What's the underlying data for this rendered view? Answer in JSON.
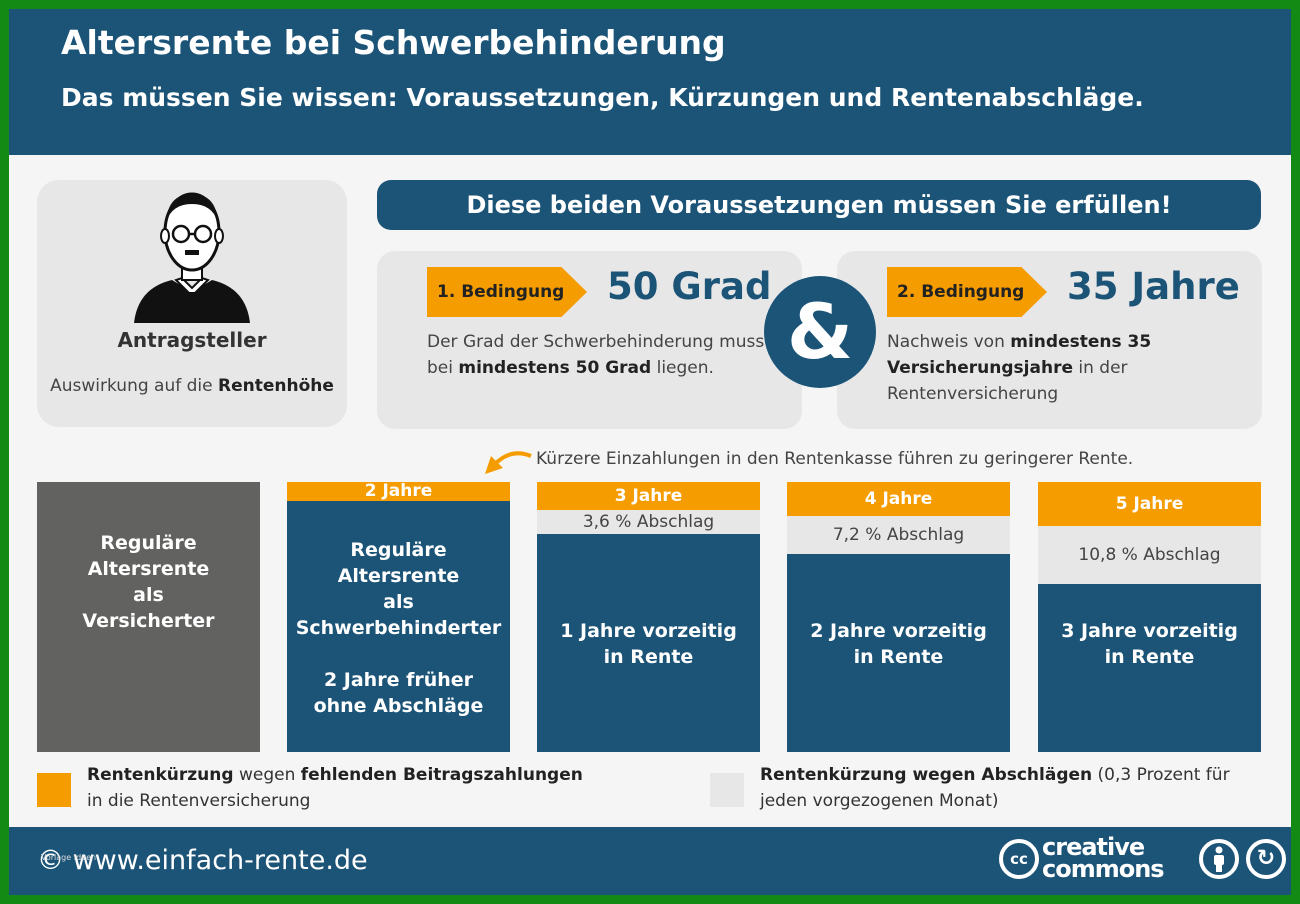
{
  "header": {
    "title": "Altersrente bei Schwerbehinderung",
    "subtitle": "Das müssen Sie wissen: Voraussetzungen, Kürzungen und Rentenabschläge."
  },
  "applicant": {
    "name": "Antragsteller",
    "desc_prefix": "Auswirkung auf die ",
    "desc_bold": "Rentenhöhe",
    "icon": "person-icon"
  },
  "requirements": {
    "banner": "Diese beiden Voraussetzungen müssen Sie erfüllen!",
    "ampersand": "&",
    "conditions": [
      {
        "tag": "1. Bedingung",
        "value": "50 Grad",
        "text_a": "Der Grad der Schwerbehinderung muss bei ",
        "text_bold": "mindestens 50 Grad",
        "text_b": " liegen."
      },
      {
        "tag": "2. Bedingung",
        "value": "35 Jahre",
        "text_a": "Nachweis von ",
        "text_bold": "mindestens 35 Versicherungsjahre",
        "text_b": " in der Rentenversicherung"
      }
    ]
  },
  "note": "Kürzere Einzahlungen in den Rentenkasse führen zu geringerer Rente.",
  "columns": [
    {
      "body": "Reguläre\nAltersrente\nals\nVersicherter"
    },
    {
      "years": "2 Jahre",
      "body_l1": "Reguläre",
      "body_l2": "Altersrente",
      "body_l3": "als",
      "body_l4": "Schwerbehinderter",
      "body_l5": "2 Jahre früher",
      "body_l6": "ohne Abschläge"
    },
    {
      "years": "3 Jahre",
      "deduction": "3,6 % Abschlag",
      "body_l1": "1 Jahre vorzeitig",
      "body_l2": "in Rente"
    },
    {
      "years": "4 Jahre",
      "deduction": "7,2 % Abschlag",
      "body_l1": "2 Jahre vorzeitig",
      "body_l2": "in Rente"
    },
    {
      "years": "5 Jahre",
      "deduction": "10,8 % Abschlag",
      "body_l1": "3 Jahre vorzeitig",
      "body_l2": "in Rente"
    }
  ],
  "legend": [
    {
      "color": "#f59c00",
      "bold1": "Rentenkürzung",
      "text1": " wegen ",
      "bold2": "fehlenden Beitragszahlungen",
      "text2": "in die Rentenversicherung"
    },
    {
      "color": "#e7e7e7",
      "bold1": "Rentenkürzung wegen Abschlägen",
      "text1": " (0,3 Prozent für",
      "text2": "jeden vorgezogenen Monat)"
    }
  ],
  "footer": {
    "url": "© www.einfach-rente.de",
    "tiny": "Vorlage Ideen",
    "cc_badge": "cc",
    "cc_word1": "creative",
    "cc_word2": "commons",
    "sa_symbol": "↻"
  },
  "colors": {
    "primary": "#1c5478",
    "accent": "#f59c00",
    "gray_column": "#626260",
    "light": "#e7e7e7",
    "border": "#138a13"
  }
}
